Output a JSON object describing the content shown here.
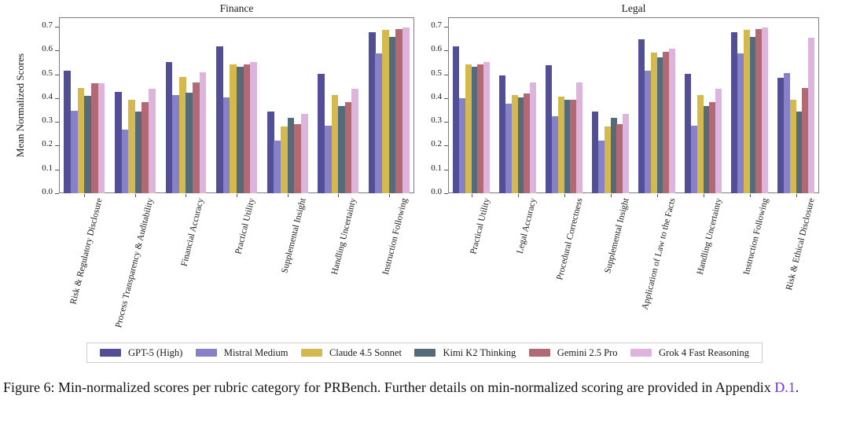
{
  "figure": {
    "ylabel": "Mean Normalized Scores",
    "yticks": [
      "0.0",
      "0.1",
      "0.2",
      "0.3",
      "0.4",
      "0.5",
      "0.6",
      "0.7"
    ],
    "caption": {
      "prefix": "Figure 6: Min-normalized scores per rubric category for PRBench. Further details on min-normalized scoring are provided in Appendix ",
      "link_label": "D.1",
      "suffix": ".",
      "link_color": "#7b2fe2"
    },
    "models": [
      {
        "name": "GPT-5 (High)",
        "color": "#534f97"
      },
      {
        "name": "Mistral Medium",
        "color": "#8781c9"
      },
      {
        "name": "Claude 4.5 Sonnet",
        "color": "#d4ba4e"
      },
      {
        "name": "Kimi K2 Thinking",
        "color": "#566b79"
      },
      {
        "name": "Gemini 2.5 Pro",
        "color": "#b16a73"
      },
      {
        "name": "Grok 4 Fast Reasoning",
        "color": "#ddb4db"
      }
    ]
  },
  "chart_data": [
    {
      "type": "bar",
      "title": "Finance",
      "ylabel": "Mean Normalized Scores",
      "ylim": [
        0,
        0.74
      ],
      "grid": false,
      "legend_position": "below-figure",
      "categories": [
        "Risk & Regulatory Disclosure",
        "Process Transparency & Auditability",
        "Financial Accuracy",
        "Practical Utility",
        "Supplemental Insight",
        "Handling Uncertainty",
        "Instruction Following"
      ],
      "series": [
        {
          "name": "GPT-5 (High)",
          "color": "#534f97",
          "values": [
            0.516,
            0.425,
            0.553,
            0.617,
            0.342,
            0.503,
            0.677
          ]
        },
        {
          "name": "Mistral Medium",
          "color": "#8781c9",
          "values": [
            0.347,
            0.266,
            0.414,
            0.402,
            0.221,
            0.284,
            0.588
          ]
        },
        {
          "name": "Claude 4.5 Sonnet",
          "color": "#d4ba4e",
          "values": [
            0.441,
            0.394,
            0.489,
            0.542,
            0.28,
            0.414,
            0.688
          ]
        },
        {
          "name": "Kimi K2 Thinking",
          "color": "#566b79",
          "values": [
            0.41,
            0.345,
            0.424,
            0.531,
            0.317,
            0.365,
            0.658
          ]
        },
        {
          "name": "Gemini 2.5 Pro",
          "color": "#b16a73",
          "values": [
            0.463,
            0.383,
            0.467,
            0.541,
            0.29,
            0.382,
            0.691
          ]
        },
        {
          "name": "Grok 4 Fast Reasoning",
          "color": "#ddb4db",
          "values": [
            0.462,
            0.438,
            0.508,
            0.55,
            0.334,
            0.44,
            0.696
          ]
        }
      ]
    },
    {
      "type": "bar",
      "title": "Legal",
      "ylabel": "Mean Normalized Scores",
      "ylim": [
        0,
        0.74
      ],
      "grid": false,
      "legend_position": "below-figure",
      "categories": [
        "Practical Utility",
        "Legal Accuracy",
        "Procedural Correctness",
        "Supplemental Insight",
        "Application of Law to the Facts",
        "Handling Uncertainty",
        "Instruction Following",
        "Risk & Ethical Disclosure"
      ],
      "series": [
        {
          "name": "GPT-5 (High)",
          "color": "#534f97",
          "values": [
            0.617,
            0.496,
            0.538,
            0.342,
            0.647,
            0.503,
            0.677,
            0.484
          ]
        },
        {
          "name": "Mistral Medium",
          "color": "#8781c9",
          "values": [
            0.401,
            0.375,
            0.324,
            0.221,
            0.514,
            0.284,
            0.588,
            0.504
          ]
        },
        {
          "name": "Claude 4.5 Sonnet",
          "color": "#d4ba4e",
          "values": [
            0.542,
            0.413,
            0.407,
            0.28,
            0.592,
            0.414,
            0.688,
            0.393
          ]
        },
        {
          "name": "Kimi K2 Thinking",
          "color": "#566b79",
          "values": [
            0.531,
            0.402,
            0.394,
            0.317,
            0.57,
            0.365,
            0.658,
            0.345
          ]
        },
        {
          "name": "Gemini 2.5 Pro",
          "color": "#b16a73",
          "values": [
            0.541,
            0.419,
            0.394,
            0.29,
            0.594,
            0.382,
            0.691,
            0.441
          ]
        },
        {
          "name": "Grok 4 Fast Reasoning",
          "color": "#ddb4db",
          "values": [
            0.55,
            0.466,
            0.466,
            0.334,
            0.608,
            0.44,
            0.696,
            0.655
          ]
        }
      ]
    }
  ]
}
